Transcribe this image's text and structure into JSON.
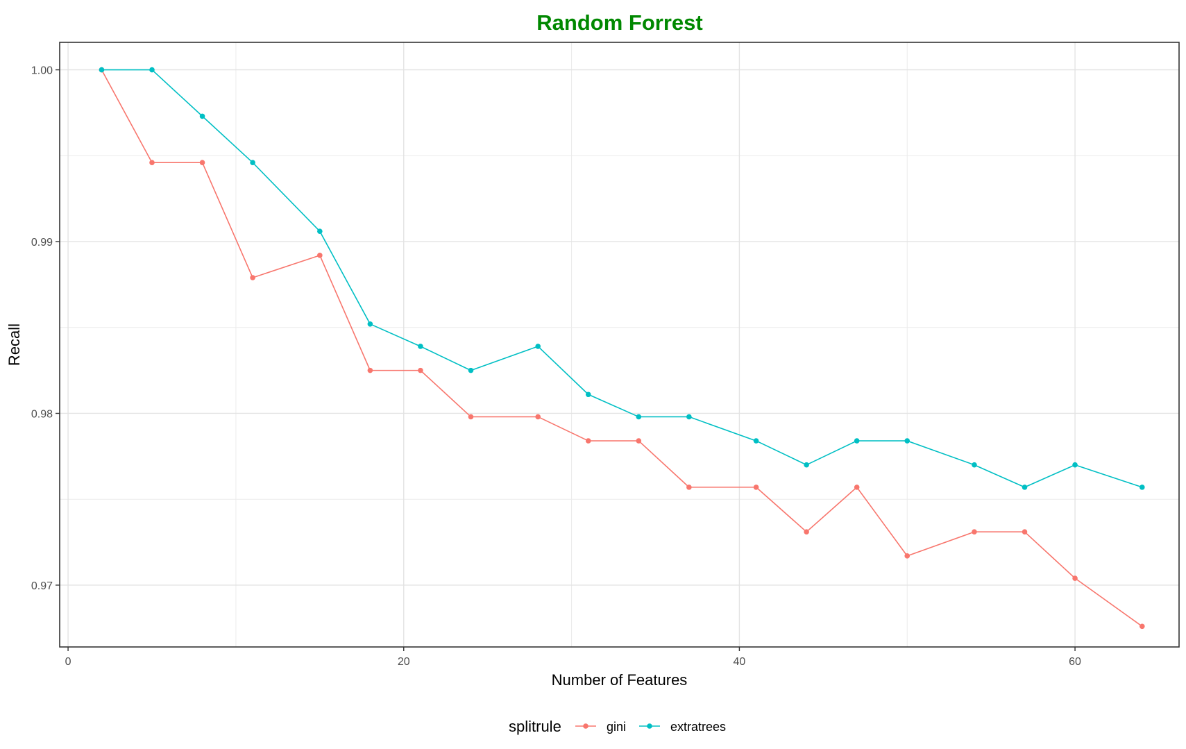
{
  "chart_data": {
    "type": "line",
    "title": "Random Forrest",
    "title_color": "#008800",
    "xlabel": "Number of Features",
    "ylabel": "Recall",
    "xlim": [
      -0.5,
      66.2
    ],
    "ylim": [
      0.9664,
      1.0016
    ],
    "x_ticks": [
      0,
      20,
      40,
      60
    ],
    "x_minor": [
      10,
      30,
      50
    ],
    "y_ticks": [
      0.97,
      0.98,
      0.99,
      1.0
    ],
    "y_tick_labels": [
      "0.97",
      "0.98",
      "0.99",
      "1.00"
    ],
    "y_minor": [
      0.975,
      0.985,
      0.995
    ],
    "grid": true,
    "legend": {
      "title": "splitrule",
      "position": "bottom"
    },
    "x": [
      2,
      5,
      8,
      11,
      15,
      18,
      21,
      24,
      28,
      31,
      34,
      37,
      41,
      44,
      47,
      50,
      54,
      57,
      60,
      64
    ],
    "series": [
      {
        "name": "gini",
        "color": "#F8766D",
        "values": [
          1.0,
          0.9946,
          0.9946,
          0.9879,
          0.9892,
          0.9825,
          0.9825,
          0.9798,
          0.9798,
          0.9784,
          0.9784,
          0.9757,
          0.9757,
          0.9731,
          0.9757,
          0.9717,
          0.9731,
          0.9731,
          0.9704,
          0.9676
        ]
      },
      {
        "name": "extratrees",
        "color": "#00BFC4",
        "values": [
          1.0,
          1.0,
          0.9973,
          0.9946,
          0.9906,
          0.9852,
          0.9839,
          0.9825,
          0.9839,
          0.9811,
          0.9798,
          0.9798,
          0.9784,
          0.977,
          0.9784,
          0.9784,
          0.977,
          0.9757,
          0.977,
          0.9757
        ]
      }
    ]
  }
}
